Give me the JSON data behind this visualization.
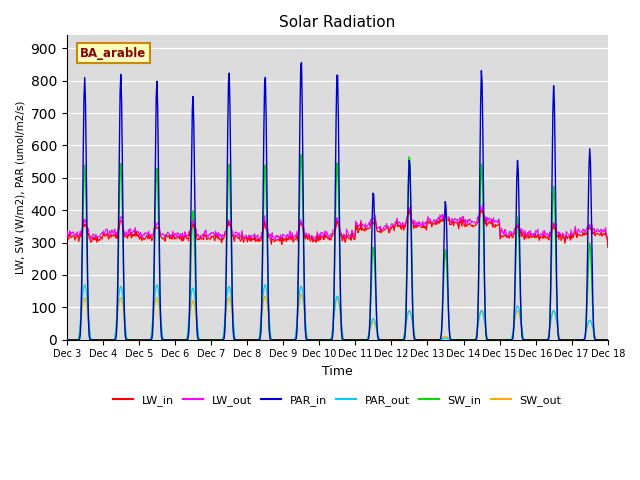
{
  "title": "Solar Radiation",
  "ylabel": "LW, SW (W/m2), PAR (umol/m2/s)",
  "xlabel": "Time",
  "annotation": "BA_arable",
  "ylim": [
    0,
    940
  ],
  "yticks": [
    0,
    100,
    200,
    300,
    400,
    500,
    600,
    700,
    800,
    900
  ],
  "background_color": "#dcdcdc",
  "plot_bg_color": "#dcdcdc",
  "colors": {
    "LW_in": "#ff0000",
    "LW_out": "#ff00ff",
    "PAR_in": "#0000cc",
    "PAR_out": "#00ccff",
    "SW_in": "#00dd00",
    "SW_out": "#ffaa00"
  },
  "n_days": 15,
  "xtick_labels": [
    "Dec 3",
    "Dec 4",
    "Dec 5",
    "Dec 6",
    "Dec 7",
    "Dec 8",
    "Dec 9",
    "Dec 10",
    "Dec 11",
    "Dec 12",
    "Dec 13",
    "Dec 14",
    "Dec 15",
    "Dec 16",
    "Dec 17",
    "Dec 18"
  ],
  "par_in_peaks": [
    810,
    820,
    800,
    755,
    830,
    820,
    870,
    835,
    460,
    560,
    430,
    835,
    555,
    785,
    590
  ],
  "sw_in_peaks": [
    540,
    545,
    530,
    400,
    545,
    545,
    580,
    555,
    290,
    570,
    280,
    545,
    380,
    475,
    300
  ],
  "par_out_peaks": [
    170,
    165,
    170,
    160,
    165,
    170,
    165,
    135,
    65,
    90,
    5,
    90,
    105,
    90,
    60
  ],
  "sw_out_peaks": [
    130,
    130,
    130,
    120,
    130,
    135,
    140,
    130,
    55,
    90,
    10,
    90,
    90,
    90,
    60
  ],
  "figsize": [
    6.4,
    4.8
  ],
  "dpi": 100
}
